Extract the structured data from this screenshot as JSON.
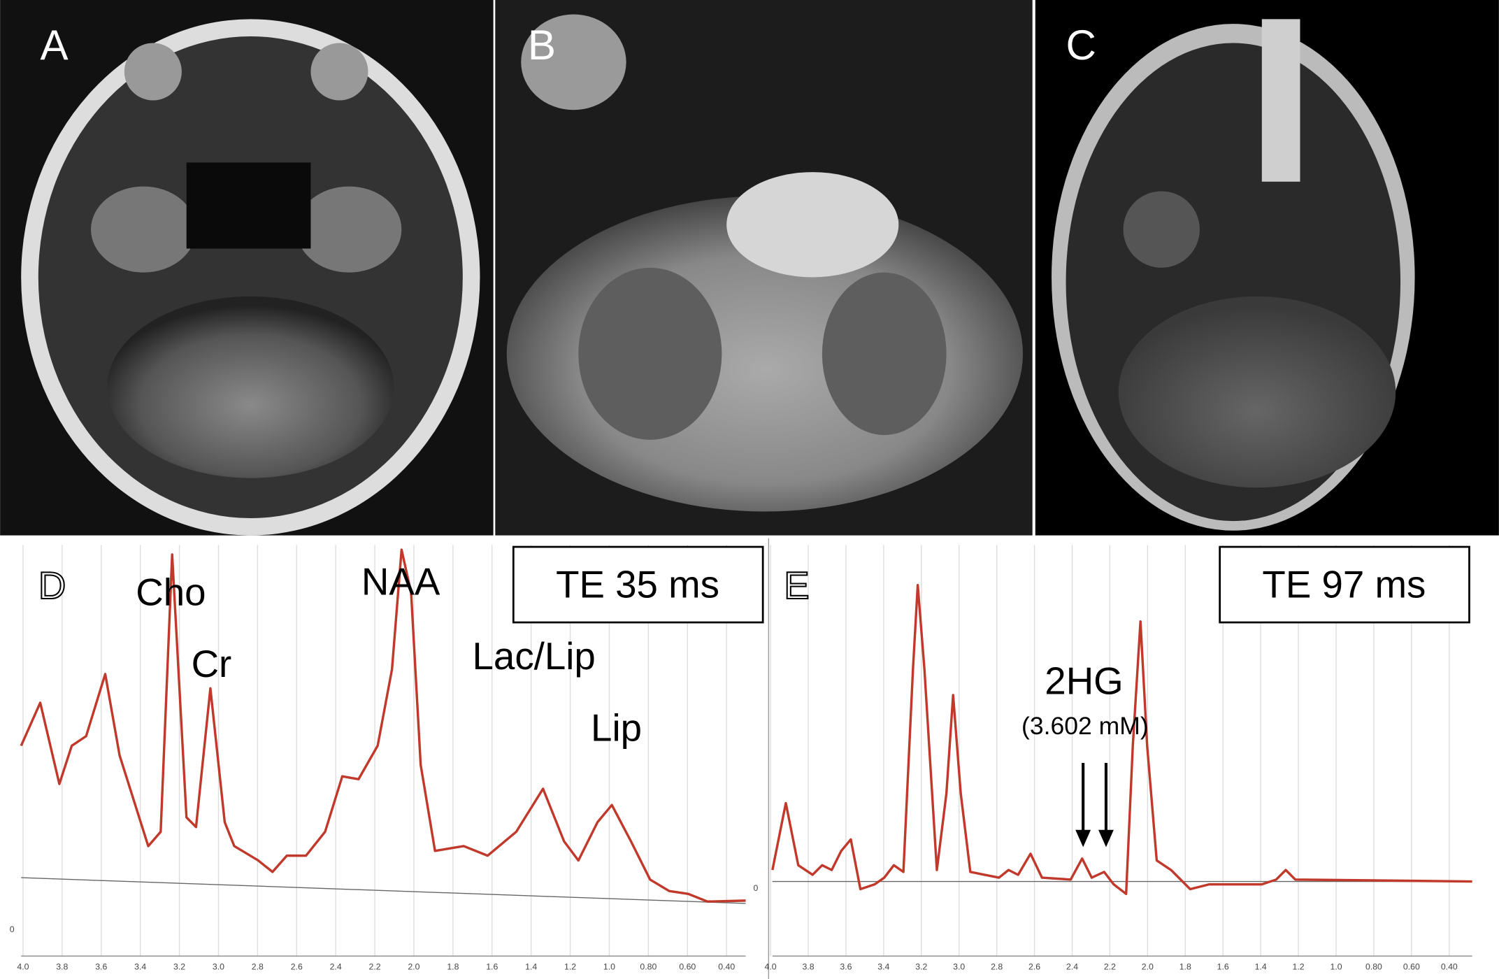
{
  "panels": [
    {
      "label": "A"
    },
    {
      "label": "B"
    },
    {
      "label": "C"
    }
  ],
  "spectra": [
    {
      "label": "D",
      "te": "TE 35 ms",
      "peaks": [
        "Cho",
        "Cr",
        "NAA",
        "Lac/Lip",
        "Lip"
      ],
      "x_ticks": [
        "4.0",
        "3.8",
        "3.6",
        "3.4",
        "3.2",
        "3.0",
        "2.8",
        "2.6",
        "2.4",
        "2.2",
        "2.0",
        "1.8",
        "1.6",
        "1.4",
        "1.2",
        "1.0",
        "0.80",
        "0.60",
        "0.40"
      ],
      "y_tick": "0"
    },
    {
      "label": "E",
      "te": "TE 97 ms",
      "annotation": "2HG",
      "concentration": "(3.602 mM)",
      "x_ticks": [
        "4.0",
        "3.8",
        "3.6",
        "3.4",
        "3.2",
        "3.0",
        "2.8",
        "2.6",
        "2.4",
        "2.2",
        "2.0",
        "1.8",
        "1.6",
        "1.4",
        "1.2",
        "1.0",
        "0.80",
        "0.60",
        "0.40"
      ],
      "y_tick": "0"
    }
  ]
}
